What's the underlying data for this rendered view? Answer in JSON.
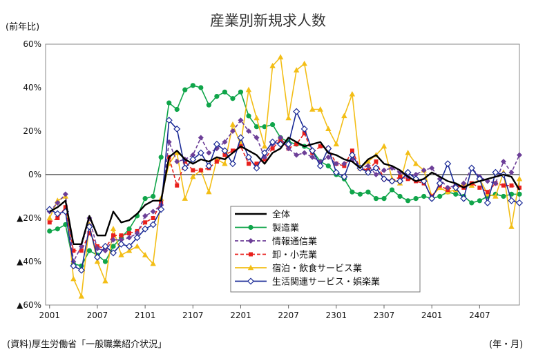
{
  "chart_data": {
    "type": "line",
    "title": "産業別新規求人数",
    "y_unit_label": "(前年比)",
    "x_unit_label": "(年・月)",
    "source": "(資料)厚生労働省「一般職業紹介状況」",
    "ylim": [
      -60,
      60
    ],
    "yticks": [
      60,
      40,
      20,
      0,
      -20,
      -40,
      -60
    ],
    "ytick_labels": [
      "60%",
      "40%",
      "20%",
      "0%",
      "▲20%",
      "▲40%",
      "▲60%"
    ],
    "x_start": "2020-01",
    "x_end": "2024-12",
    "xtick_labels": [
      "2001",
      "2007",
      "2101",
      "2107",
      "2201",
      "2207",
      "2301",
      "2307",
      "2401",
      "2407"
    ],
    "legend_position": "center-right",
    "grid": false,
    "series": [
      {
        "name": "全体",
        "color": "#000000",
        "style": "solid",
        "marker": "none",
        "values": [
          -17,
          -15,
          -12,
          -32,
          -32,
          -19,
          -28,
          -28,
          -17,
          -22,
          -21,
          -18,
          -14,
          -12,
          -12,
          8,
          11,
          7,
          5,
          7,
          6,
          8,
          7,
          10,
          13,
          11,
          9,
          5,
          10,
          12,
          17,
          15,
          13,
          14,
          15,
          10,
          9,
          7,
          6,
          3,
          7,
          9,
          5,
          4,
          2,
          -1,
          -3,
          -2,
          1,
          -1,
          -3,
          -4,
          -6,
          -4,
          -3,
          -2,
          -1,
          0,
          -1,
          -7
        ]
      },
      {
        "name": "製造業",
        "color": "#10A54A",
        "style": "solid",
        "marker": "circle",
        "values": [
          -26,
          -25,
          -23,
          -41,
          -42,
          -35,
          -37,
          -40,
          -33,
          -29,
          -25,
          -19,
          -11,
          -10,
          8,
          33,
          30,
          39,
          41,
          40,
          32,
          36,
          38,
          35,
          38,
          27,
          22,
          22,
          23,
          17,
          15,
          14,
          13,
          11,
          6,
          4,
          0,
          -2,
          -8,
          -9,
          -8,
          -11,
          -11,
          -7,
          -10,
          -12,
          -11,
          -10,
          -11,
          -10,
          -8,
          -9,
          -10,
          -13,
          -12,
          -10,
          -9,
          -10,
          -9,
          -9
        ]
      },
      {
        "name": "情報通信業",
        "color": "#6D3F98",
        "style": "dash",
        "marker": "diamond",
        "values": [
          -17,
          -13,
          -9,
          -40,
          -33,
          -20,
          -34,
          -35,
          -30,
          -30,
          -29,
          -27,
          -19,
          -17,
          -14,
          15,
          6,
          7,
          9,
          17,
          10,
          12,
          15,
          20,
          25,
          20,
          17,
          8,
          14,
          17,
          12,
          9,
          10,
          8,
          6,
          8,
          5,
          5,
          7,
          3,
          4,
          0,
          2,
          3,
          1,
          -1,
          0,
          2,
          3,
          -2,
          -6,
          -5,
          -4,
          3,
          -1,
          -3,
          -4,
          6,
          1,
          9
        ]
      },
      {
        "name": "卸・小売業",
        "color": "#E8201C",
        "style": "dash",
        "marker": "square",
        "values": [
          -22,
          -20,
          -15,
          -35,
          -35,
          -27,
          -33,
          -34,
          -28,
          -28,
          -27,
          -26,
          -22,
          -20,
          -13,
          8,
          -5,
          6,
          2,
          2,
          3,
          6,
          9,
          11,
          13,
          5,
          5,
          7,
          12,
          16,
          12,
          14,
          19,
          10,
          13,
          12,
          5,
          4,
          11,
          3,
          2,
          6,
          -2,
          -3,
          -1,
          -2,
          -3,
          -4,
          -10,
          -5,
          -7,
          -5,
          -6,
          -4,
          -6,
          -8,
          -4,
          -5,
          -5,
          -6
        ]
      },
      {
        "name": "宿泊・飲食サービス業",
        "color": "#F3BE16",
        "style": "solid",
        "marker": "triangle",
        "values": [
          -20,
          -12,
          -10,
          -48,
          -56,
          -23,
          -40,
          -49,
          -25,
          -37,
          -35,
          -33,
          -37,
          -41,
          -11,
          5,
          10,
          -11,
          -1,
          2,
          -8,
          7,
          5,
          23,
          14,
          39,
          26,
          13,
          50,
          54,
          26,
          48,
          51,
          30,
          30,
          21,
          14,
          27,
          37,
          3,
          6,
          9,
          13,
          -2,
          -4,
          10,
          5,
          2,
          -10,
          -6,
          -8,
          -7,
          -4,
          -5,
          -2,
          -9,
          -10,
          1,
          -24,
          -2
        ]
      },
      {
        "name": "生活関連サービス・娯楽業",
        "color": "#1A2A96",
        "style": "solid",
        "marker": "diamond-open",
        "values": [
          -16,
          -18,
          -17,
          -42,
          -44,
          -24,
          -38,
          -33,
          -36,
          -32,
          -33,
          -29,
          -25,
          -23,
          -16,
          25,
          21,
          3,
          7,
          10,
          4,
          14,
          11,
          5,
          17,
          8,
          3,
          10,
          15,
          14,
          14,
          29,
          21,
          11,
          4,
          12,
          1,
          -1,
          9,
          3,
          1,
          3,
          -2,
          -3,
          -3,
          1,
          -2,
          -3,
          -11,
          -4,
          5,
          -6,
          -11,
          3,
          -2,
          -13,
          1,
          0,
          -12,
          -13
        ]
      }
    ]
  }
}
